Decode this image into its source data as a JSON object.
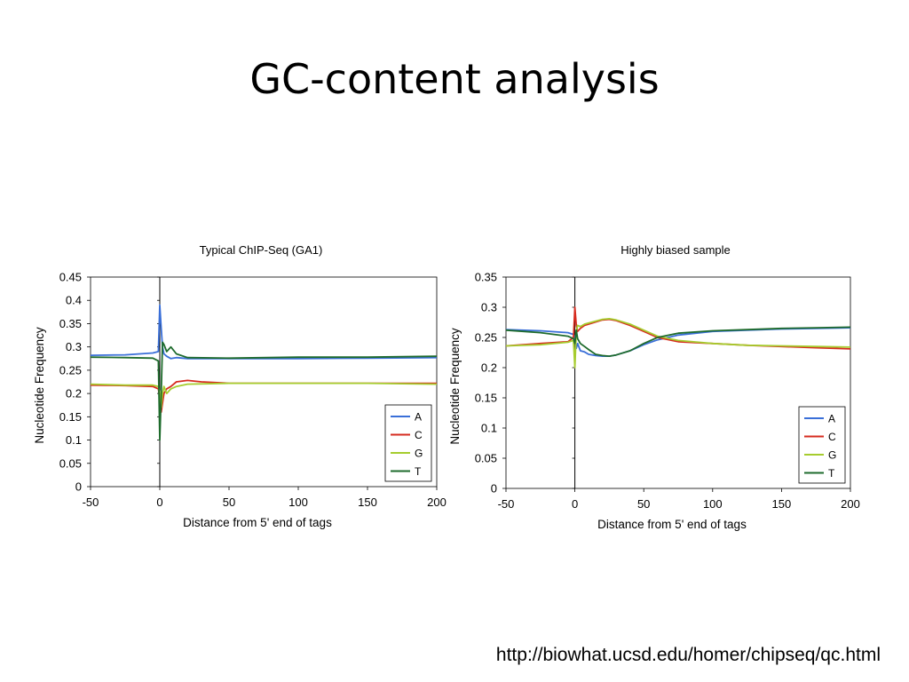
{
  "slide": {
    "title": "GC-content analysis",
    "source_url": "http://biowhat.ucsd.edu/homer/chipseq/qc.html"
  },
  "colors": {
    "A": "#3a6fd8",
    "C": "#d62b1f",
    "G": "#a6cc2e",
    "T": "#1e6b2c"
  },
  "chart_data": [
    {
      "type": "line",
      "title": "Typical ChIP-Seq (GA1)",
      "xlabel": "Distance from 5' end of tags",
      "ylabel": "Nucleotide Frequency",
      "xlim": [
        -50,
        200
      ],
      "ylim": [
        0,
        0.45
      ],
      "xticks": [
        "-50",
        "0",
        "50",
        "100",
        "150",
        "200"
      ],
      "yticks": [
        "0",
        "0.05",
        "0.1",
        "0.15",
        "0.2",
        "0.25",
        "0.3",
        "0.35",
        "0.4",
        "0.45"
      ],
      "grid": false,
      "legend": "bottom-right",
      "series": [
        {
          "name": "A",
          "x": [
            -50,
            -25,
            -5,
            -1,
            0,
            1,
            2,
            3,
            5,
            8,
            12,
            20,
            50,
            100,
            150,
            200
          ],
          "y": [
            0.282,
            0.283,
            0.287,
            0.29,
            0.39,
            0.34,
            0.3,
            0.285,
            0.28,
            0.275,
            0.277,
            0.275,
            0.275,
            0.275,
            0.276,
            0.277
          ]
        },
        {
          "name": "C",
          "x": [
            -50,
            -25,
            -5,
            -1,
            0,
            1,
            2,
            3,
            5,
            8,
            12,
            20,
            30,
            50,
            100,
            150,
            200
          ],
          "y": [
            0.218,
            0.217,
            0.215,
            0.21,
            0.19,
            0.16,
            0.18,
            0.2,
            0.21,
            0.215,
            0.225,
            0.228,
            0.225,
            0.222,
            0.222,
            0.222,
            0.222
          ]
        },
        {
          "name": "G",
          "x": [
            -50,
            -25,
            -5,
            -1,
            0,
            1,
            2,
            3,
            5,
            8,
            12,
            20,
            50,
            100,
            150,
            200
          ],
          "y": [
            0.22,
            0.218,
            0.218,
            0.215,
            0.2,
            0.17,
            0.2,
            0.215,
            0.2,
            0.21,
            0.215,
            0.22,
            0.222,
            0.222,
            0.222,
            0.22
          ]
        },
        {
          "name": "T",
          "x": [
            -50,
            -25,
            -5,
            -1,
            0,
            1,
            2,
            3,
            5,
            8,
            12,
            20,
            50,
            100,
            150,
            200
          ],
          "y": [
            0.278,
            0.277,
            0.276,
            0.27,
            0.1,
            0.2,
            0.31,
            0.305,
            0.29,
            0.3,
            0.285,
            0.277,
            0.276,
            0.278,
            0.278,
            0.28
          ]
        }
      ]
    },
    {
      "type": "line",
      "title": "Highly biased sample",
      "xlabel": "Distance from 5' end of tags",
      "ylabel": "Nucleotide Frequency",
      "xlim": [
        -50,
        200
      ],
      "ylim": [
        0,
        0.35
      ],
      "xticks": [
        "-50",
        "0",
        "50",
        "100",
        "150",
        "200"
      ],
      "yticks": [
        "0",
        "0.05",
        "0.1",
        "0.15",
        "0.2",
        "0.25",
        "0.3",
        "0.35"
      ],
      "grid": false,
      "legend": "bottom-right",
      "series": [
        {
          "name": "A",
          "x": [
            -50,
            -25,
            -5,
            -1,
            0,
            1,
            2,
            4,
            7,
            10,
            15,
            20,
            25,
            30,
            40,
            50,
            60,
            75,
            100,
            125,
            150,
            175,
            200
          ],
          "y": [
            0.263,
            0.261,
            0.258,
            0.255,
            0.25,
            0.232,
            0.24,
            0.228,
            0.226,
            0.222,
            0.22,
            0.219,
            0.219,
            0.221,
            0.228,
            0.238,
            0.246,
            0.254,
            0.26,
            0.262,
            0.264,
            0.265,
            0.266
          ]
        },
        {
          "name": "C",
          "x": [
            -50,
            -25,
            -5,
            -1,
            0,
            1,
            2,
            4,
            7,
            10,
            20,
            25,
            30,
            40,
            50,
            60,
            75,
            100,
            125,
            150,
            175,
            200
          ],
          "y": [
            0.236,
            0.24,
            0.243,
            0.25,
            0.3,
            0.27,
            0.26,
            0.265,
            0.27,
            0.272,
            0.279,
            0.28,
            0.278,
            0.27,
            0.26,
            0.25,
            0.243,
            0.24,
            0.237,
            0.235,
            0.233,
            0.231
          ]
        },
        {
          "name": "G",
          "x": [
            -50,
            -25,
            -5,
            -1,
            0,
            1,
            2,
            4,
            7,
            10,
            20,
            25,
            30,
            40,
            50,
            60,
            75,
            100,
            125,
            150,
            175,
            200
          ],
          "y": [
            0.236,
            0.238,
            0.242,
            0.245,
            0.2,
            0.26,
            0.27,
            0.268,
            0.272,
            0.274,
            0.28,
            0.281,
            0.279,
            0.272,
            0.262,
            0.252,
            0.245,
            0.24,
            0.237,
            0.236,
            0.235,
            0.234
          ]
        },
        {
          "name": "T",
          "x": [
            -50,
            -25,
            -5,
            -1,
            0,
            1,
            2,
            4,
            7,
            10,
            15,
            20,
            25,
            30,
            40,
            50,
            60,
            75,
            100,
            125,
            150,
            175,
            200
          ],
          "y": [
            0.262,
            0.258,
            0.252,
            0.248,
            0.24,
            0.262,
            0.248,
            0.24,
            0.235,
            0.23,
            0.222,
            0.22,
            0.219,
            0.221,
            0.228,
            0.24,
            0.25,
            0.257,
            0.261,
            0.263,
            0.265,
            0.266,
            0.267
          ]
        }
      ]
    }
  ]
}
